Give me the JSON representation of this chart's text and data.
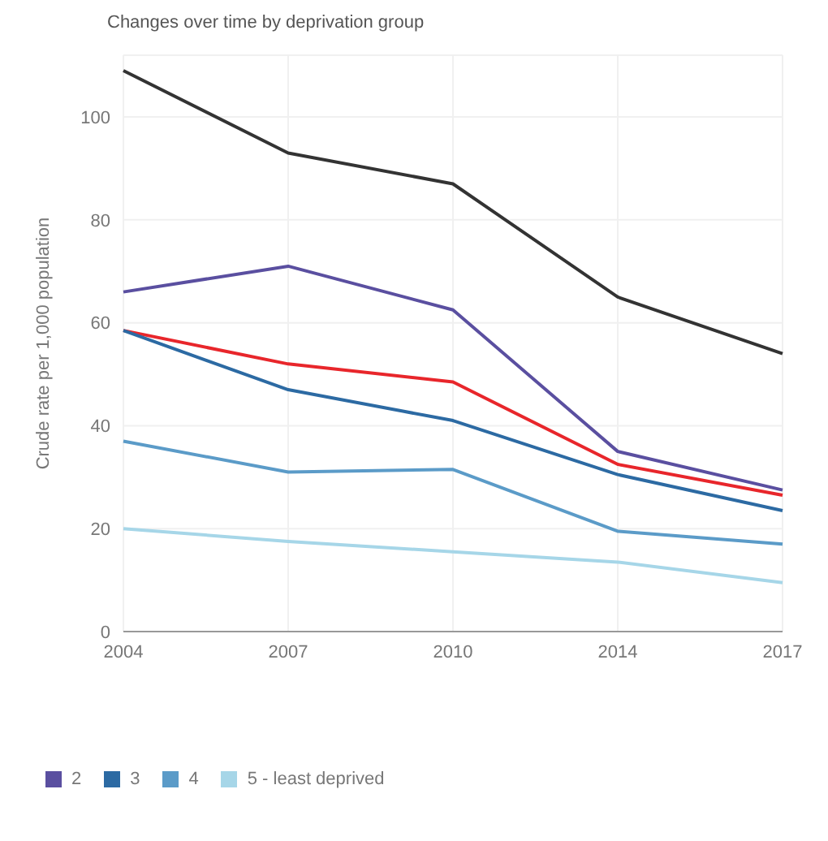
{
  "chart_data": {
    "type": "line",
    "title": "Changes over time by deprivation group",
    "ylabel": "Crude rate per 1,000 population",
    "categories": [
      "2004",
      "2007",
      "2010",
      "2014",
      "2017"
    ],
    "series": [
      {
        "color": "#333333",
        "values": [
          109,
          93,
          87,
          65,
          54
        ]
      },
      {
        "name": "2",
        "color": "#5a4fa0",
        "values": [
          66,
          71,
          62.5,
          35,
          27.5
        ]
      },
      {
        "color": "#e8262b",
        "values": [
          58.5,
          52,
          48.5,
          32.5,
          26.5
        ]
      },
      {
        "name": "3",
        "color": "#2c6aa3",
        "values": [
          58.5,
          47,
          41,
          30.5,
          23.5
        ]
      },
      {
        "name": "4",
        "color": "#5b9bc8",
        "values": [
          37,
          31,
          31.5,
          19.5,
          17
        ]
      },
      {
        "name": "5 - least deprived",
        "color": "#a6d6e8",
        "values": [
          20,
          17.5,
          15.5,
          13.5,
          9.5
        ]
      }
    ],
    "ylim": [
      0,
      112
    ],
    "yticks": [
      0,
      20,
      40,
      60,
      80,
      100
    ],
    "grid": true,
    "legend": "bottom",
    "marker": "none",
    "line_style": "solid"
  }
}
